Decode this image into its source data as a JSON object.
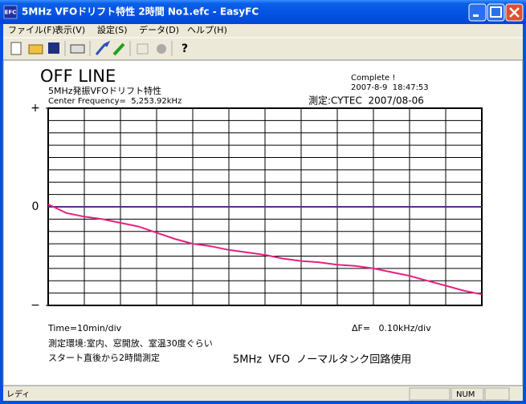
{
  "window": {
    "icon": "EFC",
    "title": "5MHz VFOドリフト特性 2時間 No1.efc - EasyFC"
  },
  "menu": [
    "ファイル(F)",
    "表示(V)",
    "設定(S)",
    "データ(D)",
    "ヘルプ(H)"
  ],
  "chart_data": {
    "type": "line",
    "title": "OFF LINE",
    "subtitle": "5MHz発振VFOドリフト特性",
    "center_frequency": "Center Frequency=  5,253.92kHz",
    "status": "Complete !",
    "timestamp": "2007-8-9  18:47:53",
    "measured_by": "測定:CYTEC  2007/08-06",
    "x": [
      0,
      5,
      10,
      15,
      20,
      25,
      30,
      35,
      40,
      45,
      50,
      55,
      60,
      65,
      70,
      75,
      80,
      85,
      90,
      95,
      100,
      105,
      110,
      115,
      120
    ],
    "series": [
      {
        "color": "#e8207e",
        "values": [
          0.02,
          -0.05,
          -0.08,
          -0.1,
          -0.13,
          -0.16,
          -0.21,
          -0.26,
          -0.3,
          -0.32,
          -0.35,
          -0.37,
          -0.39,
          -0.42,
          -0.44,
          -0.45,
          -0.47,
          -0.48,
          -0.5,
          -0.53,
          -0.56,
          -0.6,
          -0.64,
          -0.68,
          -0.71
        ]
      }
    ],
    "xlim": [
      0,
      120
    ],
    "ylim": [
      -0.8,
      0.8
    ],
    "yticks": [
      {
        "value": 0.8,
        "label": "+"
      },
      {
        "value": 0,
        "label": "0"
      },
      {
        "value": -0.8,
        "label": "−"
      }
    ],
    "zero_line_color": "#5a2a8a",
    "grid": true,
    "annotations": [
      "Time=10min/div",
      "ΔF=   0.10kHz/div",
      "測定環境:室内、窓開放、室温30度ぐらい",
      "スタート直後から2時間測定",
      "5MHz  VFO  ノーマルタンク回路使用"
    ]
  },
  "status_bar": {
    "text": "レディ",
    "indicator": "NUM"
  }
}
